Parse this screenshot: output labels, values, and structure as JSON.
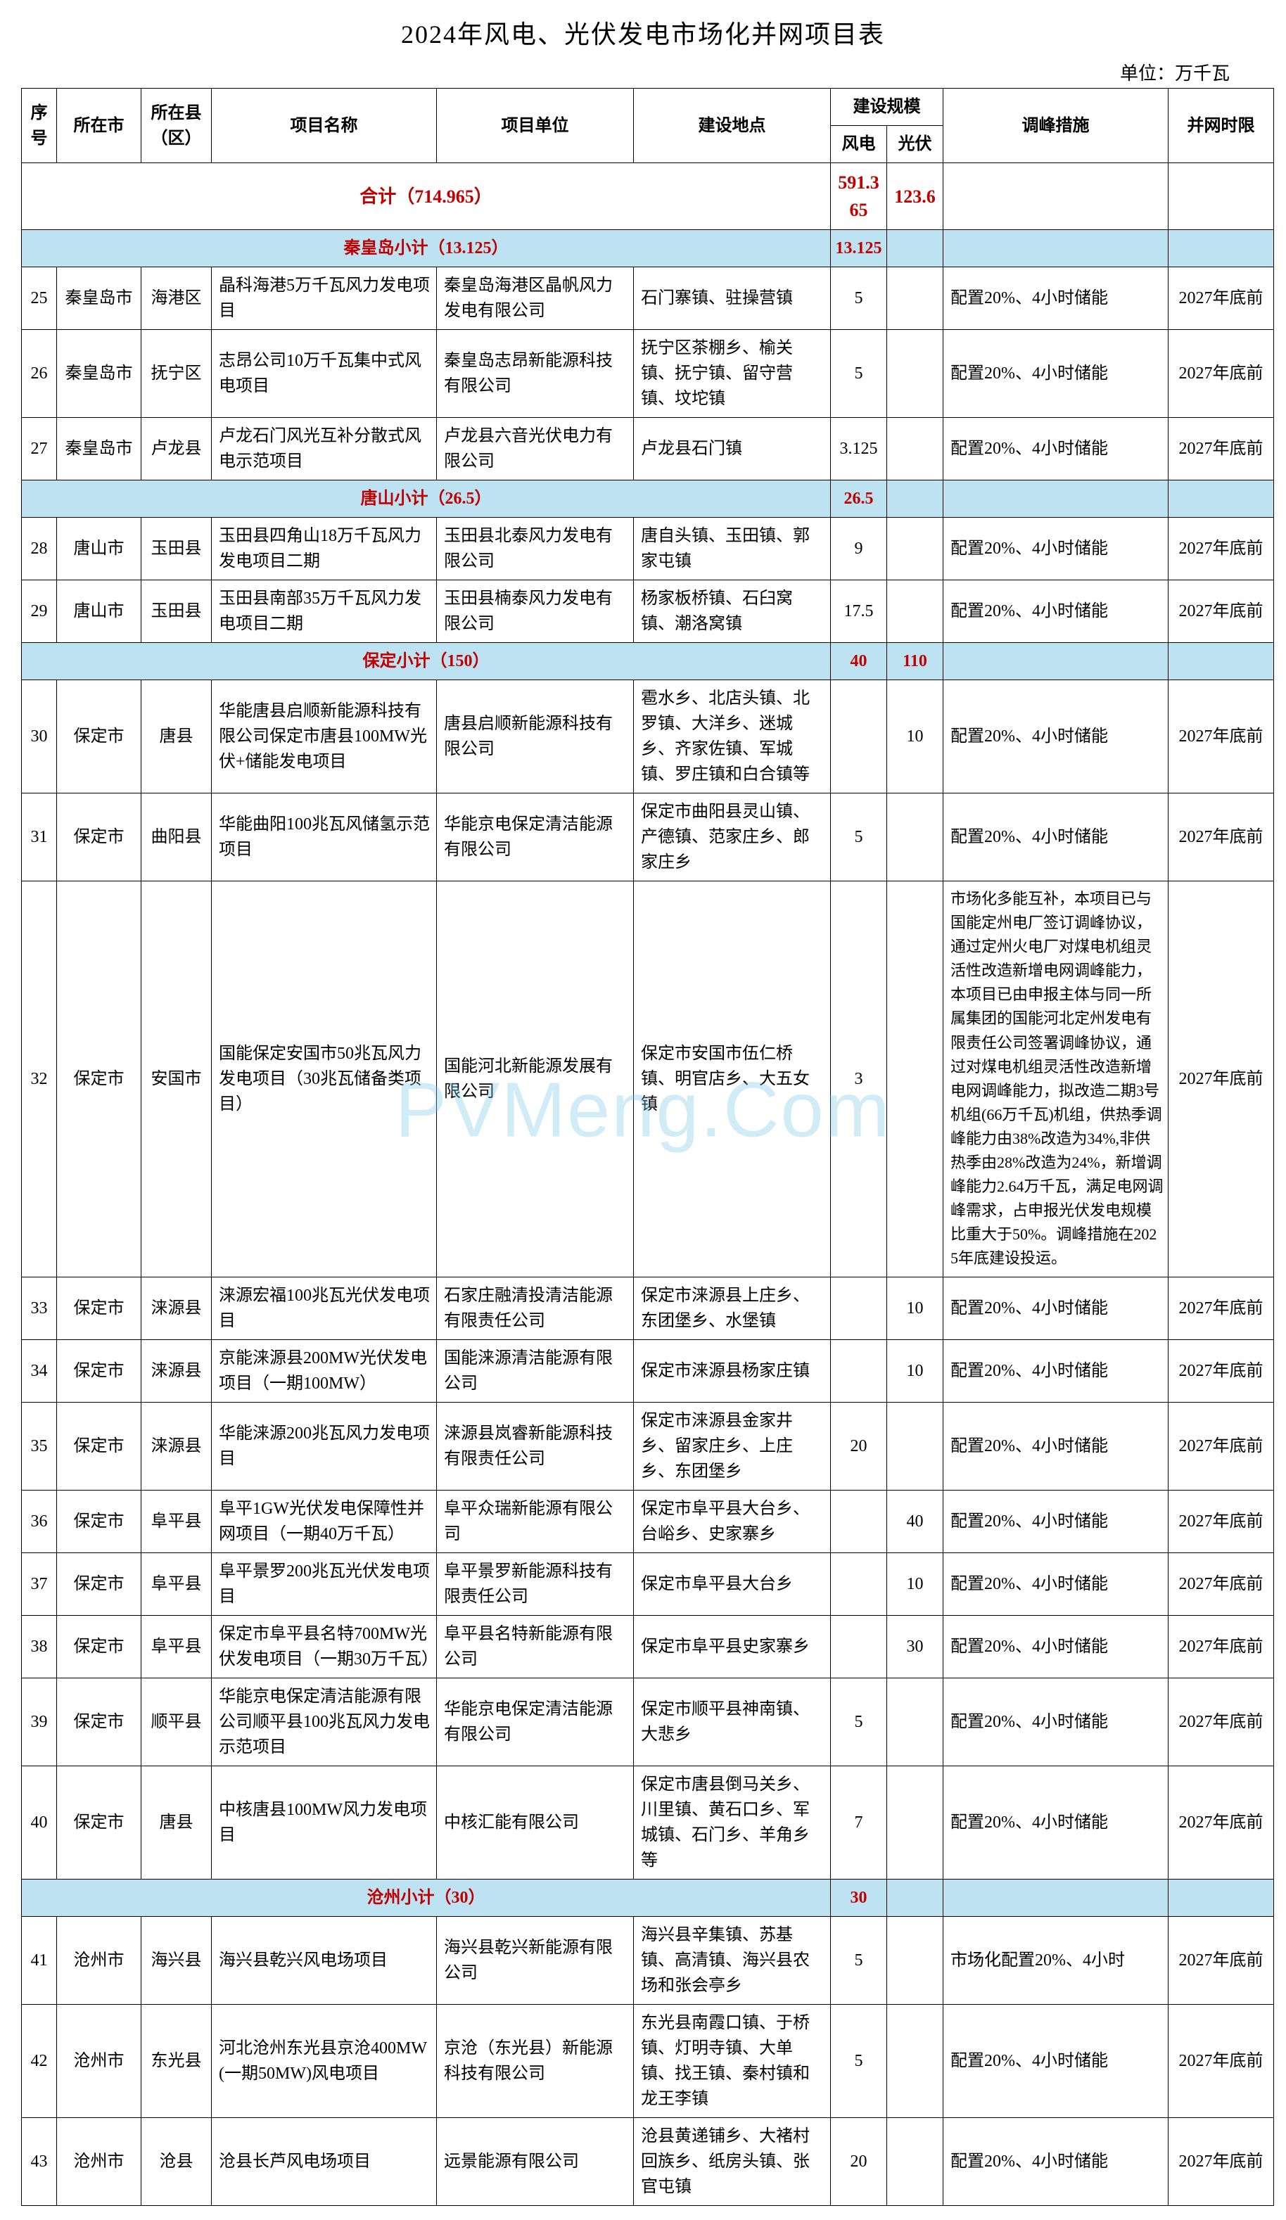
{
  "title": "2024年风电、光伏发电市场化并网项目表",
  "unit_label": "单位：万千瓦",
  "watermark": "PVMeng.Com",
  "headers": {
    "idx": "序号",
    "city": "所在市",
    "county": "所在县（区）",
    "name": "项目名称",
    "unit": "项目单位",
    "loc": "建设地点",
    "scale": "建设规模",
    "wind": "风电",
    "solar": "光伏",
    "measure": "调峰措施",
    "deadline": "并网时限"
  },
  "total": {
    "label": "合计（714.965）",
    "wind": "591.365",
    "solar": "123.6"
  },
  "subtotals": {
    "qhd": {
      "label": "秦皇岛小计（13.125）",
      "wind": "13.125",
      "solar": ""
    },
    "ts": {
      "label": "唐山小计（26.5）",
      "wind": "26.5",
      "solar": ""
    },
    "bd": {
      "label": "保定小计（150）",
      "wind": "40",
      "solar": "110"
    },
    "cz": {
      "label": "沧州小计（30）",
      "wind": "30",
      "solar": ""
    }
  },
  "rows": [
    {
      "idx": "25",
      "city": "秦皇岛市",
      "county": "海港区",
      "name": "晶科海港5万千瓦风力发电项目",
      "unit": "秦皇岛海港区晶帆风力发电有限公司",
      "loc": "石门寨镇、驻操营镇",
      "wind": "5",
      "solar": "",
      "measure": "配置20%、4小时储能",
      "deadline": "2027年底前"
    },
    {
      "idx": "26",
      "city": "秦皇岛市",
      "county": "抚宁区",
      "name": "志昂公司10万千瓦集中式风电项目",
      "unit": "秦皇岛志昂新能源科技有限公司",
      "loc": "抚宁区茶棚乡、榆关镇、抚宁镇、留守营镇、坟坨镇",
      "wind": "5",
      "solar": "",
      "measure": "配置20%、4小时储能",
      "deadline": "2027年底前"
    },
    {
      "idx": "27",
      "city": "秦皇岛市",
      "county": "卢龙县",
      "name": "卢龙石门风光互补分散式风电示范项目",
      "unit": "卢龙县六音光伏电力有限公司",
      "loc": "卢龙县石门镇",
      "wind": "3.125",
      "solar": "",
      "measure": "配置20%、4小时储能",
      "deadline": "2027年底前"
    },
    {
      "idx": "28",
      "city": "唐山市",
      "county": "玉田县",
      "name": "玉田县四角山18万千瓦风力发电项目二期",
      "unit": "玉田县北泰风力发电有限公司",
      "loc": "唐自头镇、玉田镇、郭家屯镇",
      "wind": "9",
      "solar": "",
      "measure": "配置20%、4小时储能",
      "deadline": "2027年底前"
    },
    {
      "idx": "29",
      "city": "唐山市",
      "county": "玉田县",
      "name": "玉田县南部35万千瓦风力发电项目二期",
      "unit": "玉田县楠泰风力发电有限公司",
      "loc": "杨家板桥镇、石臼窝镇、潮洛窝镇",
      "wind": "17.5",
      "solar": "",
      "measure": "配置20%、4小时储能",
      "deadline": "2027年底前"
    },
    {
      "idx": "30",
      "city": "保定市",
      "county": "唐县",
      "name": "华能唐县启顺新能源科技有限公司保定市唐县100MW光伏+储能发电项目",
      "unit": "唐县启顺新能源科技有限公司",
      "loc": "雹水乡、北店头镇、北罗镇、大洋乡、迷城乡、齐家佐镇、军城镇、罗庄镇和白合镇等",
      "wind": "",
      "solar": "10",
      "measure": "配置20%、4小时储能",
      "deadline": "2027年底前"
    },
    {
      "idx": "31",
      "city": "保定市",
      "county": "曲阳县",
      "name": "华能曲阳100兆瓦风储氢示范项目",
      "unit": "华能京电保定清洁能源有限公司",
      "loc": "保定市曲阳县灵山镇、产德镇、范家庄乡、郎家庄乡",
      "wind": "5",
      "solar": "",
      "measure": "配置20%、4小时储能",
      "deadline": "2027年底前"
    },
    {
      "idx": "32",
      "city": "保定市",
      "county": "安国市",
      "name": "国能保定安国市50兆瓦风力发电项目（30兆瓦储备类项目）",
      "unit": "国能河北新能源发展有限公司",
      "loc": "保定市安国市伍仁桥镇、明官店乡、大五女镇",
      "wind": "3",
      "solar": "",
      "measure": "市场化多能互补，本项目已与国能定州电厂签订调峰协议，通过定州火电厂对煤电机组灵活性改造新增电网调峰能力，本项目已由申报主体与同一所属集团的国能河北定州发电有限责任公司签署调峰协议，通过对煤电机组灵活性改造新增电网调峰能力，拟改造二期3号机组(66万千瓦)机组，供热季调峰能力由38%改造为34%,非供热季由28%改造为24%，新增调峰能力2.64万千瓦，满足电网调峰需求，占申报光伏发电规模比重大于50%。调峰措施在2025年底建设投运。",
      "deadline": "2027年底前"
    },
    {
      "idx": "33",
      "city": "保定市",
      "county": "涞源县",
      "name": "涞源宏福100兆瓦光伏发电项目",
      "unit": "石家庄融清投清洁能源有限责任公司",
      "loc": "保定市涞源县上庄乡、东团堡乡、水堡镇",
      "wind": "",
      "solar": "10",
      "measure": "配置20%、4小时储能",
      "deadline": "2027年底前"
    },
    {
      "idx": "34",
      "city": "保定市",
      "county": "涞源县",
      "name": "京能涞源县200MW光伏发电项目（一期100MW）",
      "unit": "国能涞源清洁能源有限公司",
      "loc": "保定市涞源县杨家庄镇",
      "wind": "",
      "solar": "10",
      "measure": "配置20%、4小时储能",
      "deadline": "2027年底前"
    },
    {
      "idx": "35",
      "city": "保定市",
      "county": "涞源县",
      "name": "华能涞源200兆瓦风力发电项目",
      "unit": "涞源县岚睿新能源科技有限责任公司",
      "loc": "保定市涞源县金家井乡、留家庄乡、上庄乡、东团堡乡",
      "wind": "20",
      "solar": "",
      "measure": "配置20%、4小时储能",
      "deadline": "2027年底前"
    },
    {
      "idx": "36",
      "city": "保定市",
      "county": "阜平县",
      "name": "阜平1GW光伏发电保障性并网项目（一期40万千瓦）",
      "unit": "阜平众瑞新能源有限公司",
      "loc": "保定市阜平县大台乡、台峪乡、史家寨乡",
      "wind": "",
      "solar": "40",
      "measure": "配置20%、4小时储能",
      "deadline": "2027年底前"
    },
    {
      "idx": "37",
      "city": "保定市",
      "county": "阜平县",
      "name": "阜平景罗200兆瓦光伏发电项目",
      "unit": "阜平景罗新能源科技有限责任公司",
      "loc": "保定市阜平县大台乡",
      "wind": "",
      "solar": "10",
      "measure": "配置20%、4小时储能",
      "deadline": "2027年底前"
    },
    {
      "idx": "38",
      "city": "保定市",
      "county": "阜平县",
      "name": "保定市阜平县名特700MW光伏发电项目（一期30万千瓦）",
      "unit": "阜平县名特新能源有限公司",
      "loc": "保定市阜平县史家寨乡",
      "wind": "",
      "solar": "30",
      "measure": "配置20%、4小时储能",
      "deadline": "2027年底前"
    },
    {
      "idx": "39",
      "city": "保定市",
      "county": "顺平县",
      "name": "华能京电保定清洁能源有限公司顺平县100兆瓦风力发电示范项目",
      "unit": "华能京电保定清洁能源有限公司",
      "loc": "保定市顺平县神南镇、大悲乡",
      "wind": "5",
      "solar": "",
      "measure": "配置20%、4小时储能",
      "deadline": "2027年底前"
    },
    {
      "idx": "40",
      "city": "保定市",
      "county": "唐县",
      "name": "中核唐县100MW风力发电项目",
      "unit": "中核汇能有限公司",
      "loc": "保定市唐县倒马关乡、川里镇、黄石口乡、军城镇、石门乡、羊角乡等",
      "wind": "7",
      "solar": "",
      "measure": "配置20%、4小时储能",
      "deadline": "2027年底前"
    },
    {
      "idx": "41",
      "city": "沧州市",
      "county": "海兴县",
      "name": "海兴县乾兴风电场项目",
      "unit": "海兴县乾兴新能源有限公司",
      "loc": "海兴县辛集镇、苏基镇、高清镇、海兴县农场和张会亭乡",
      "wind": "5",
      "solar": "",
      "measure": "市场化配置20%、4小时",
      "deadline": "2027年底前"
    },
    {
      "idx": "42",
      "city": "沧州市",
      "county": "东光县",
      "name": "河北沧州东光县京沧400MW(一期50MW)风电项目",
      "unit": "京沧（东光县）新能源科技有限公司",
      "loc": "东光县南霞口镇、于桥镇、灯明寺镇、大单镇、找王镇、秦村镇和龙王李镇",
      "wind": "5",
      "solar": "",
      "measure": "配置20%、4小时储能",
      "deadline": "2027年底前"
    },
    {
      "idx": "43",
      "city": "沧州市",
      "county": "沧县",
      "name": "沧县长芦风电场项目",
      "unit": "远景能源有限公司",
      "loc": "沧县黄递铺乡、大褚村回族乡、纸房头镇、张官屯镇",
      "wind": "20",
      "solar": "",
      "measure": "配置20%、4小时储能",
      "deadline": "2027年底前"
    }
  ]
}
